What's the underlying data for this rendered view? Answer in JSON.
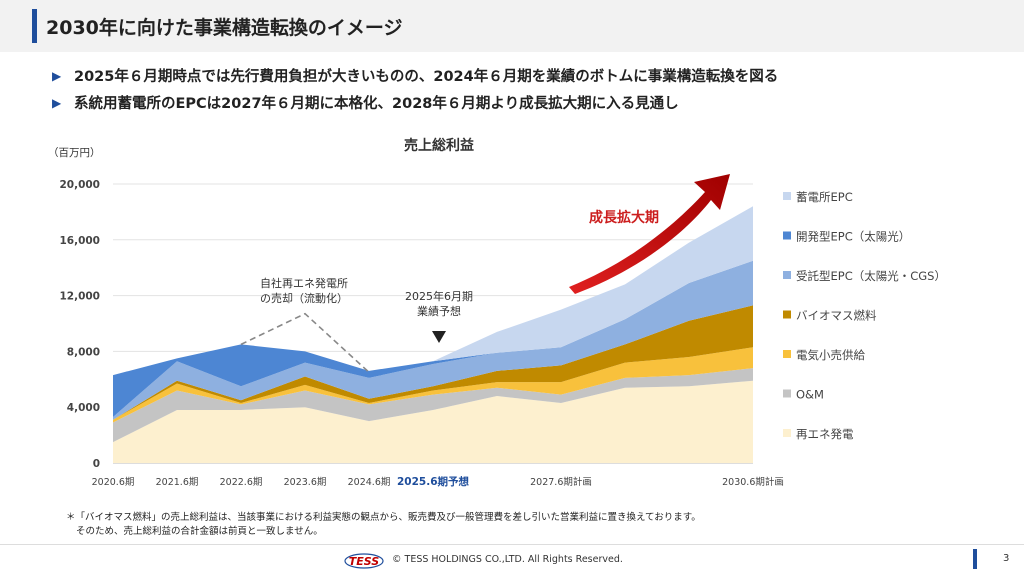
{
  "slide": {
    "title": "2030年に向けた事業構造転換のイメージ",
    "bullets": [
      "2025年６月期時点では先行費用負担が大きいものの、2024年６月期を業績のボトムに事業構造転換を図る",
      "系統用蓄電所のEPCは2027年６月期に本格化、2028年６月期より成長拡大期に入る見通し"
    ],
    "footnote": [
      "＊「バイオマス燃料」の売上総利益は、当該事業における利益実態の観点から、販売費及び一般管理費を差し引いた営業利益に置き換えております。",
      "そのため、売上総利益の合計金額は前頁と一致しません。"
    ],
    "footer": {
      "logo_text": "TESS",
      "copyright": "© TESS HOLDINGS CO.,LTD. All Rights Reserved.",
      "page": "3"
    }
  },
  "chart_data": {
    "type": "area",
    "stacked": true,
    "title": "売上総利益",
    "unit_label": "（百万円）",
    "ylim": [
      0,
      20000
    ],
    "yticks": [
      0,
      4000,
      8000,
      12000,
      16000,
      20000
    ],
    "ytick_labels": [
      "0",
      "4,000",
      "8,000",
      "12,000",
      "16,000",
      "20,000"
    ],
    "x": [
      0,
      1,
      2,
      3,
      4,
      5,
      6,
      7,
      8,
      9,
      10
    ],
    "x_tick_labels": [
      {
        "x": 0,
        "label": "2020.6期",
        "highlight": false
      },
      {
        "x": 1,
        "label": "2021.6期",
        "highlight": false
      },
      {
        "x": 2,
        "label": "2022.6期",
        "highlight": false
      },
      {
        "x": 3,
        "label": "2023.6期",
        "highlight": false
      },
      {
        "x": 4,
        "label": "2024.6期",
        "highlight": false
      },
      {
        "x": 5,
        "label": "2025.6期予想",
        "highlight": true
      },
      {
        "x": 7,
        "label": "2027.6期計画",
        "highlight": false
      },
      {
        "x": 10,
        "label": "2030.6期計画",
        "highlight": false
      }
    ],
    "series": [
      {
        "name": "再エネ発電",
        "color": "#fdf0cf",
        "values": [
          1500,
          3800,
          3800,
          4000,
          3000,
          3800,
          4800,
          4300,
          5400,
          5500,
          5900
        ]
      },
      {
        "name": "O&M",
        "color": "#c4c4c4",
        "values": [
          1400,
          1400,
          400,
          1200,
          1200,
          1100,
          600,
          600,
          700,
          800,
          900
        ]
      },
      {
        "name": "電気小売供給",
        "color": "#f8c13c",
        "values": [
          200,
          500,
          100,
          400,
          100,
          300,
          400,
          900,
          1100,
          1300,
          1500
        ]
      },
      {
        "name": "バイオマス燃料",
        "color": "#c08a00",
        "values": [
          0,
          200,
          200,
          600,
          300,
          300,
          800,
          1200,
          1300,
          2600,
          3000
        ]
      },
      {
        "name": "受託型EPC（太陽光・CGS）",
        "color": "#8eb0e0",
        "values": [
          200,
          1400,
          1000,
          1000,
          1500,
          1600,
          1300,
          1300,
          1800,
          2700,
          3200
        ]
      },
      {
        "name": "開発型EPC（太陽光）",
        "color": "#4d86d3",
        "values": [
          3000,
          200,
          3000,
          800,
          500,
          200,
          0,
          0,
          0,
          0,
          0
        ]
      },
      {
        "name": "蓄電所EPC",
        "color": "#c7d7ef",
        "values": [
          0,
          0,
          0,
          0,
          0,
          0,
          1500,
          2700,
          2500,
          2900,
          3900
        ]
      }
    ],
    "dashed_overlay": {
      "x": [
        2,
        3,
        4
      ],
      "y": [
        8500,
        10700,
        6500
      ]
    },
    "annotations": {
      "sale": [
        "自社再エネ発電所",
        "の売却（流動化）"
      ],
      "forecast": [
        "2025年6月期",
        "業績予想"
      ],
      "growth": "成長拡大期"
    },
    "legend_position": "right"
  }
}
